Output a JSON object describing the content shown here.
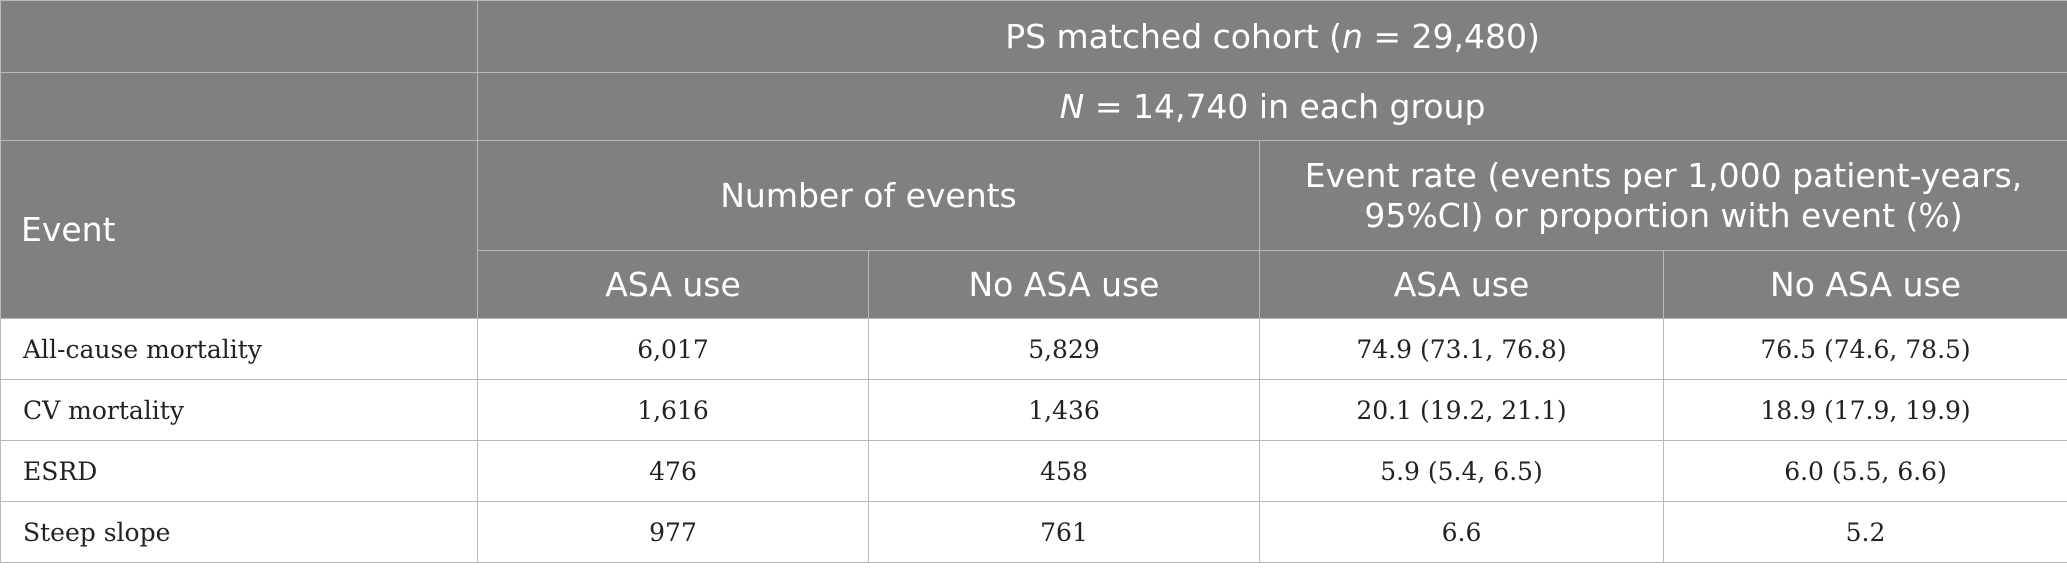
{
  "header": {
    "cohort_prefix": "PS matched cohort (",
    "cohort_n_symbol": "n",
    "cohort_suffix": " = 29,480)",
    "group_n_symbol": "N",
    "group_suffix": " = 14,740 in each group",
    "event_label": "Event",
    "number_of_events": "Number of events",
    "event_rate": "Event rate (events per 1,000 patient-years, 95%CI) or proportion with event (%)",
    "asa_use": "ASA use",
    "no_asa_use": "No ASA use"
  },
  "rows": [
    {
      "event": "All-cause mortality",
      "n_asa": "6,017",
      "n_no_asa": "5,829",
      "rate_asa": "74.9 (73.1, 76.8)",
      "rate_no_asa": "76.5 (74.6, 78.5)"
    },
    {
      "event": "CV mortality",
      "n_asa": "1,616",
      "n_no_asa": "1,436",
      "rate_asa": "20.1 (19.2, 21.1)",
      "rate_no_asa": "18.9 (17.9, 19.9)"
    },
    {
      "event": "ESRD",
      "n_asa": "476",
      "n_no_asa": "458",
      "rate_asa": "5.9 (5.4, 6.5)",
      "rate_no_asa": "6.0 (5.5, 6.6)"
    },
    {
      "event": "Steep slope",
      "n_asa": "977",
      "n_no_asa": "761",
      "rate_asa": "6.6",
      "rate_no_asa": "5.2"
    }
  ]
}
